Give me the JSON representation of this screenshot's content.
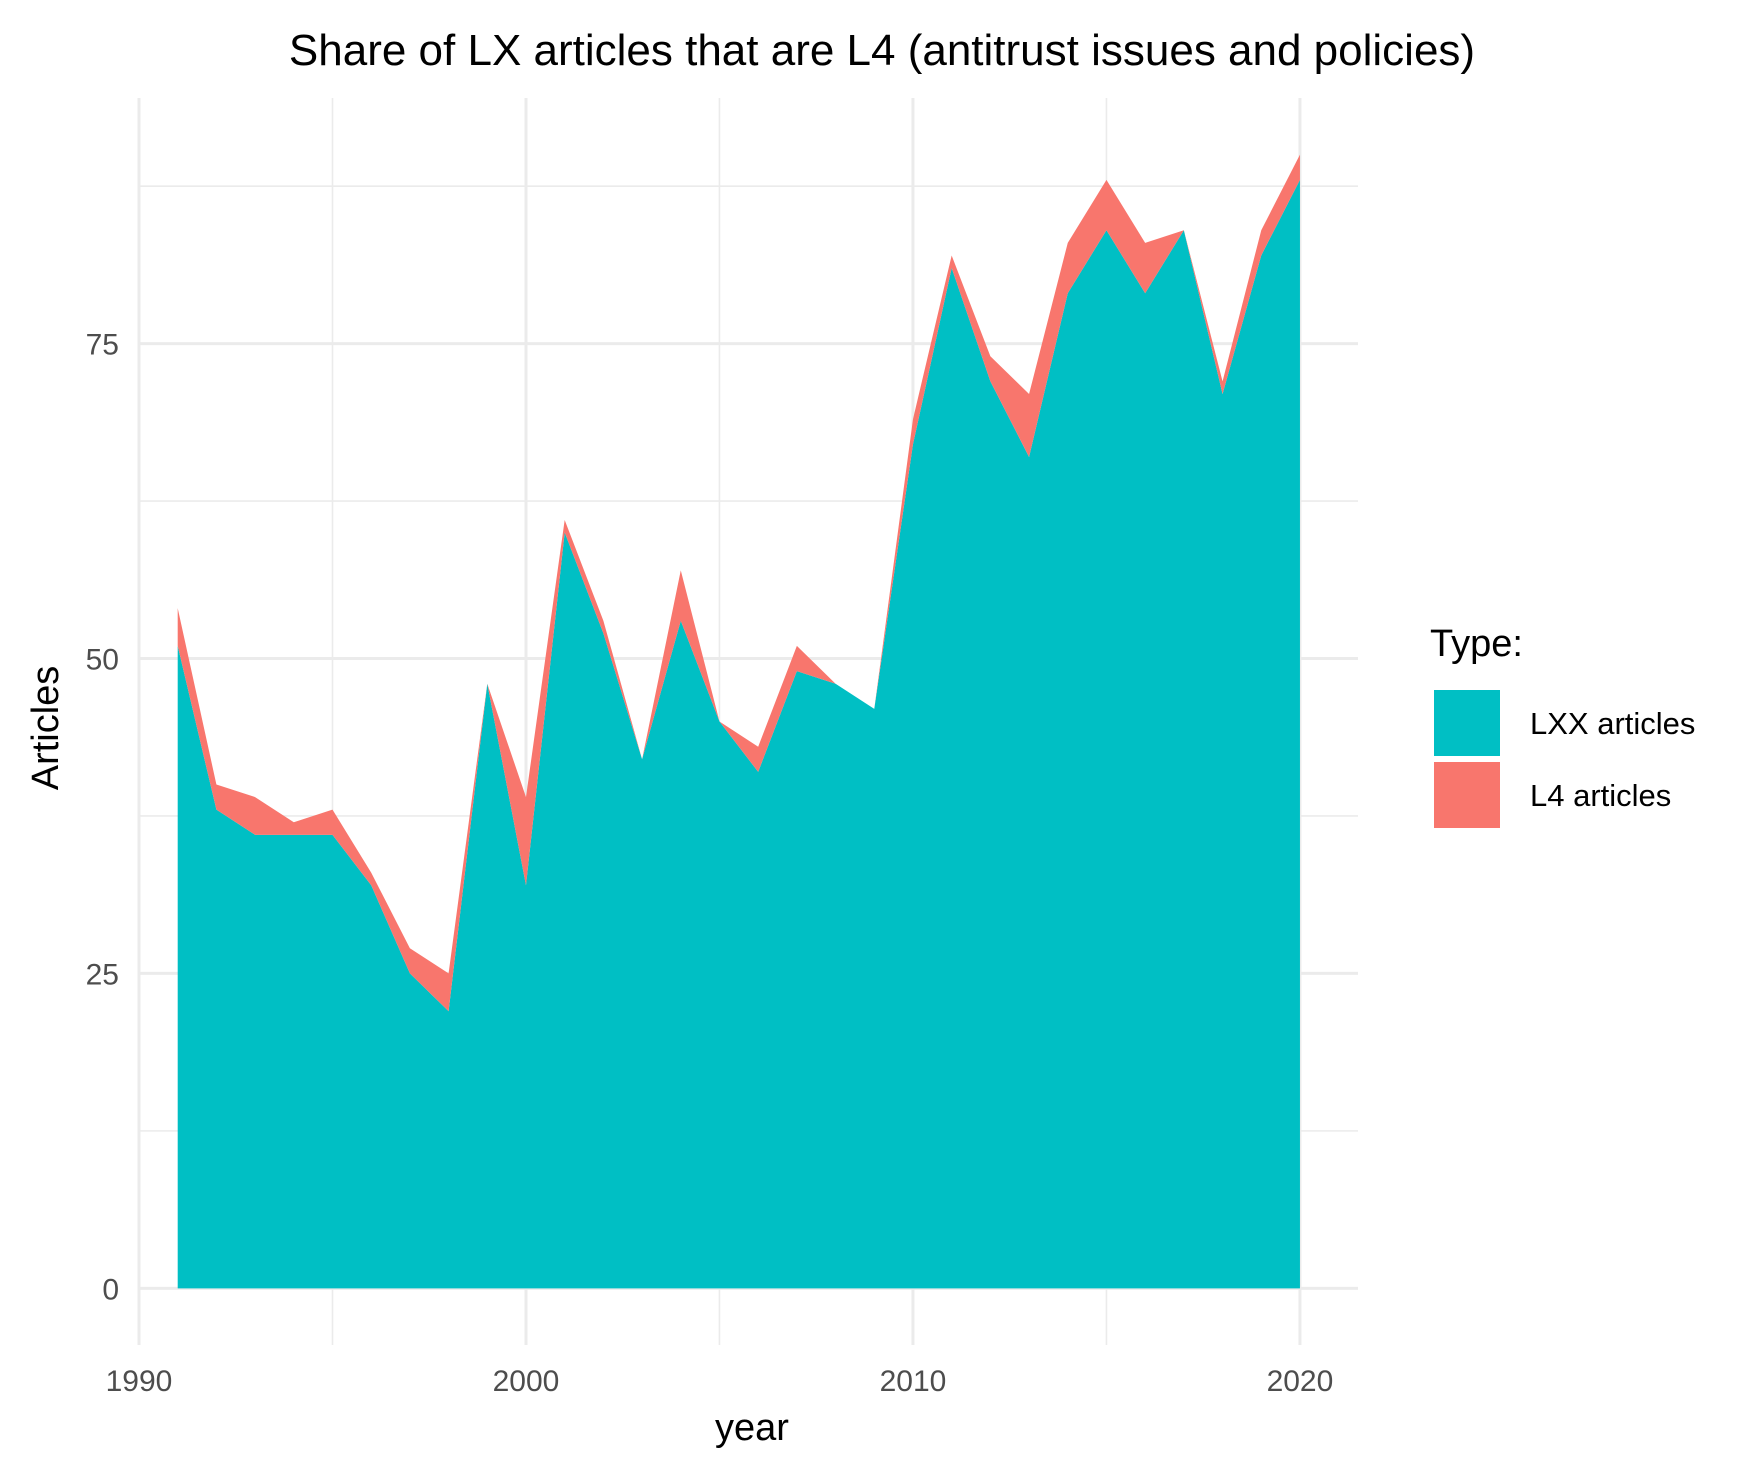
{
  "chart_data": {
    "type": "area",
    "stacked": true,
    "title": "Share of LX articles that are L4 (antitrust issues and policies)",
    "xlabel": "year",
    "ylabel": "Articles",
    "xlim": [
      1990,
      2021.5
    ],
    "ylim": [
      -4.5,
      94.5
    ],
    "x_ticks": [
      1990,
      2000,
      2010,
      2020
    ],
    "y_ticks": [
      0,
      25,
      50,
      75
    ],
    "x_tick_labels": [
      "1990",
      "2000",
      "2010",
      "2020"
    ],
    "y_tick_labels": [
      "0",
      "25",
      "50",
      "75"
    ],
    "grid": true,
    "legend_position": "right",
    "legend_title": "Type:",
    "x": [
      1991,
      1992,
      1993,
      1994,
      1995,
      1996,
      1997,
      1998,
      1999,
      2000,
      2001,
      2002,
      2003,
      2004,
      2005,
      2006,
      2007,
      2008,
      2009,
      2010,
      2011,
      2012,
      2013,
      2014,
      2015,
      2016,
      2017,
      2018,
      2019,
      2020
    ],
    "series": [
      {
        "name": "LXX articles",
        "color": "#00BFC4",
        "values": [
          51,
          38,
          36,
          36,
          36,
          32,
          25,
          22,
          48,
          32,
          60,
          52,
          42,
          53,
          45,
          41,
          49,
          48,
          46,
          67,
          81,
          72,
          66,
          79,
          84,
          79,
          84,
          71,
          82,
          88
        ]
      },
      {
        "name": "L4 articles",
        "color": "#F8766D",
        "values": [
          3,
          2,
          3,
          1,
          2,
          1,
          2,
          3,
          0,
          7,
          1,
          1,
          0,
          4,
          0,
          2,
          2,
          0,
          0,
          2,
          1,
          2,
          5,
          4,
          4,
          4,
          0,
          1,
          2,
          2
        ]
      }
    ]
  }
}
